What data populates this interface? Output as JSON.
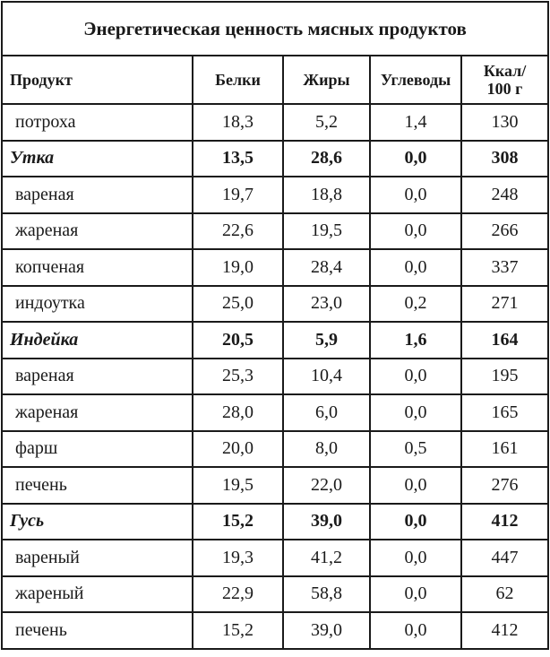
{
  "table": {
    "title": "Энергетическая ценность мясных продуктов",
    "headers": {
      "product": "Продукт",
      "protein": "Белки",
      "fat": "Жиры",
      "carbs": "Углеводы",
      "kcal_line1": "Ккал/",
      "kcal_line2": "100 г"
    },
    "rows": [
      {
        "name": "потроха",
        "protein": "18,3",
        "fat": "5,2",
        "carbs": "1,4",
        "kcal": "130",
        "group": false
      },
      {
        "name": "Утка",
        "protein": "13,5",
        "fat": "28,6",
        "carbs": "0,0",
        "kcal": "308",
        "group": true
      },
      {
        "name": "вареная",
        "protein": "19,7",
        "fat": "18,8",
        "carbs": "0,0",
        "kcal": "248",
        "group": false
      },
      {
        "name": "жареная",
        "protein": "22,6",
        "fat": "19,5",
        "carbs": "0,0",
        "kcal": "266",
        "group": false
      },
      {
        "name": "копченая",
        "protein": "19,0",
        "fat": "28,4",
        "carbs": "0,0",
        "kcal": "337",
        "group": false
      },
      {
        "name": "индоутка",
        "protein": "25,0",
        "fat": "23,0",
        "carbs": "0,2",
        "kcal": "271",
        "group": false
      },
      {
        "name": "Индейка",
        "protein": "20,5",
        "fat": "5,9",
        "carbs": "1,6",
        "kcal": "164",
        "group": true
      },
      {
        "name": "вареная",
        "protein": "25,3",
        "fat": "10,4",
        "carbs": "0,0",
        "kcal": "195",
        "group": false
      },
      {
        "name": "жареная",
        "protein": "28,0",
        "fat": "6,0",
        "carbs": "0,0",
        "kcal": "165",
        "group": false
      },
      {
        "name": "фарш",
        "protein": "20,0",
        "fat": "8,0",
        "carbs": "0,5",
        "kcal": "161",
        "group": false
      },
      {
        "name": "печень",
        "protein": "19,5",
        "fat": "22,0",
        "carbs": "0,0",
        "kcal": "276",
        "group": false
      },
      {
        "name": "Гусь",
        "protein": "15,2",
        "fat": "39,0",
        "carbs": "0,0",
        "kcal": "412",
        "group": true
      },
      {
        "name": "вареный",
        "protein": "19,3",
        "fat": "41,2",
        "carbs": "0,0",
        "kcal": "447",
        "group": false
      },
      {
        "name": "жареный",
        "protein": "22,9",
        "fat": "58,8",
        "carbs": "0,0",
        "kcal": "62",
        "group": false
      },
      {
        "name": "печень",
        "protein": "15,2",
        "fat": "39,0",
        "carbs": "0,0",
        "kcal": "412",
        "group": false
      }
    ]
  }
}
